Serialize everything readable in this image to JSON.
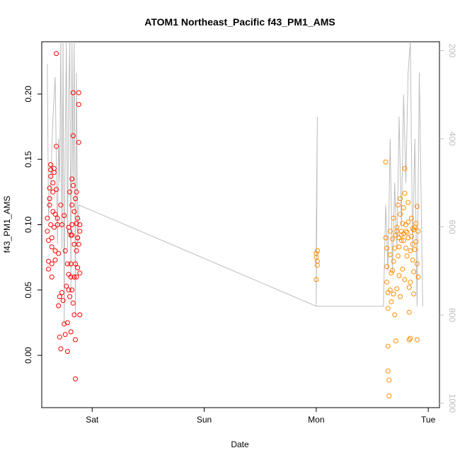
{
  "chart_data": {
    "type": "scatter",
    "title": "ATOM1 Northeast_Pacific f43_PM1_AMS",
    "xlabel": "Date",
    "ylabel": "f43_PM1_AMS",
    "x_ticks": [
      "Sat",
      "Sun",
      "Mon",
      "Tue"
    ],
    "x_range_days": [
      -0.45,
      3.1
    ],
    "ylim": [
      -0.04,
      0.24
    ],
    "y_ticks": [
      "0.00",
      "0.05",
      "0.10",
      "0.15",
      "0.20"
    ],
    "y2_ticks": [
      "200",
      "400",
      "600",
      "800",
      "1000"
    ],
    "y2_range": [
      1010,
      180
    ],
    "grid": false,
    "colors": {
      "series1": "#ff0000",
      "series2": "#ff8c00",
      "line": "#bdbdbd",
      "axis": "#000000",
      "axis_right": "#bdbdbd"
    },
    "series": [
      {
        "color": "#ff0000",
        "points": [
          [
            -0.4,
            0.105
          ],
          [
            -0.4,
            0.095
          ],
          [
            -0.39,
            0.088
          ],
          [
            -0.39,
            0.072
          ],
          [
            -0.39,
            0.066
          ],
          [
            -0.38,
            0.115
          ],
          [
            -0.38,
            0.12
          ],
          [
            -0.38,
            0.128
          ],
          [
            -0.37,
            0.137
          ],
          [
            -0.37,
            0.142
          ],
          [
            -0.37,
            0.146
          ],
          [
            -0.37,
            0.1
          ],
          [
            -0.36,
            0.09
          ],
          [
            -0.36,
            0.083
          ],
          [
            -0.36,
            0.07
          ],
          [
            -0.36,
            0.06
          ],
          [
            -0.35,
            0.11
          ],
          [
            -0.35,
            0.125
          ],
          [
            -0.35,
            0.132
          ],
          [
            -0.34,
            0.143
          ],
          [
            -0.34,
            0.14
          ],
          [
            -0.34,
            0.098
          ],
          [
            -0.33,
            0.108
          ],
          [
            -0.33,
            0.08
          ],
          [
            -0.33,
            0.073
          ],
          [
            -0.32,
            0.16
          ],
          [
            -0.32,
            0.127
          ],
          [
            -0.32,
            0.231
          ],
          [
            -0.31,
            0.105
          ],
          [
            -0.31,
            0.1
          ],
          [
            -0.3,
            0.078
          ],
          [
            -0.3,
            0.038
          ],
          [
            -0.29,
            0.045
          ],
          [
            -0.29,
            0.014
          ],
          [
            -0.28,
            0.005
          ],
          [
            -0.28,
            0.115
          ],
          [
            -0.27,
            0.1
          ],
          [
            -0.27,
            0.048
          ],
          [
            -0.26,
            0.042
          ],
          [
            -0.25,
            0.107
          ],
          [
            -0.25,
            0.024
          ],
          [
            -0.24,
            0.016
          ],
          [
            -0.24,
            0.08
          ],
          [
            -0.23,
            0.053
          ],
          [
            -0.22,
            0.003
          ],
          [
            -0.22,
            0.025
          ],
          [
            -0.21,
            0.062
          ],
          [
            -0.21,
            0.098
          ],
          [
            -0.2,
            0.125
          ],
          [
            -0.2,
            0.045
          ],
          [
            -0.19,
            0.06
          ],
          [
            -0.19,
            0.018
          ],
          [
            -0.18,
            0.092
          ],
          [
            -0.18,
            0.135
          ],
          [
            -0.17,
            0.168
          ],
          [
            -0.17,
            0.201
          ],
          [
            -0.16,
            0.085
          ],
          [
            -0.16,
            0.031
          ],
          [
            -0.15,
            0.012
          ],
          [
            -0.15,
            -0.018
          ],
          [
            -0.14,
            0.125
          ],
          [
            -0.14,
            0.101
          ],
          [
            -0.13,
            0.09
          ],
          [
            -0.13,
            0.067
          ],
          [
            -0.12,
            0.201
          ],
          [
            -0.12,
            0.192
          ],
          [
            -0.12,
            0.163
          ],
          [
            -0.11,
            0.095
          ],
          [
            -0.11,
            0.063
          ],
          [
            -0.11,
            0.031
          ],
          [
            -0.17,
            0.13
          ],
          [
            -0.18,
            0.115
          ],
          [
            -0.16,
            0.11
          ],
          [
            -0.15,
            0.12
          ],
          [
            -0.14,
            0.08
          ],
          [
            -0.13,
            0.105
          ],
          [
            -0.2,
            0.095
          ],
          [
            -0.21,
            0.05
          ],
          [
            -0.22,
            0.07
          ],
          [
            -0.19,
            0.07
          ],
          [
            -0.18,
            0.05
          ],
          [
            -0.17,
            0.04
          ],
          [
            -0.16,
            0.06
          ],
          [
            -0.15,
            0.07
          ],
          [
            -0.14,
            0.06
          ],
          [
            -0.13,
            0.09
          ],
          [
            -0.12,
            0.085
          ],
          [
            -0.11,
            0.1
          ],
          [
            -0.18,
            0.1
          ],
          [
            -0.19,
            0.092
          ]
        ]
      },
      {
        "color": "#ff8c00",
        "points": [
          [
            2.0,
            0.078
          ],
          [
            2.0,
            0.075
          ],
          [
            2.01,
            0.072
          ],
          [
            2.01,
            0.069
          ],
          [
            2.0,
            0.058
          ],
          [
            2.01,
            0.08
          ],
          [
            2.62,
            0.148
          ],
          [
            2.62,
            0.09
          ],
          [
            2.63,
            0.082
          ],
          [
            2.63,
            0.068
          ],
          [
            2.63,
            0.056
          ],
          [
            2.64,
            0.048
          ],
          [
            2.64,
            0.036
          ],
          [
            2.64,
            0.007
          ],
          [
            2.64,
            -0.012
          ],
          [
            2.65,
            -0.019
          ],
          [
            2.65,
            -0.031
          ],
          [
            2.66,
            0.095
          ],
          [
            2.66,
            0.077
          ],
          [
            2.67,
            0.063
          ],
          [
            2.67,
            0.041
          ],
          [
            2.68,
            0.089
          ],
          [
            2.69,
            0.105
          ],
          [
            2.69,
            0.072
          ],
          [
            2.7,
            0.031
          ],
          [
            2.71,
            0.011
          ],
          [
            2.71,
            0.092
          ],
          [
            2.72,
            0.098
          ],
          [
            2.73,
            0.115
          ],
          [
            2.73,
            0.076
          ],
          [
            2.74,
            0.083
          ],
          [
            2.74,
            0.061
          ],
          [
            2.75,
            0.12
          ],
          [
            2.75,
            0.108
          ],
          [
            2.76,
            0.095
          ],
          [
            2.76,
            0.088
          ],
          [
            2.77,
            0.101
          ],
          [
            2.77,
            0.066
          ],
          [
            2.78,
            0.113
          ],
          [
            2.78,
            0.093
          ],
          [
            2.79,
            0.124
          ],
          [
            2.79,
            0.143
          ],
          [
            2.8,
            0.095
          ],
          [
            2.8,
            0.082
          ],
          [
            2.81,
            0.094
          ],
          [
            2.81,
            0.076
          ],
          [
            2.82,
            0.117
          ],
          [
            2.82,
            0.102
          ],
          [
            2.83,
            0.033
          ],
          [
            2.83,
            0.012
          ],
          [
            2.84,
            0.013
          ],
          [
            2.84,
            0.056
          ],
          [
            2.85,
            0.105
          ],
          [
            2.85,
            0.091
          ],
          [
            2.86,
            0.085
          ],
          [
            2.86,
            0.073
          ],
          [
            2.87,
            0.096
          ],
          [
            2.87,
            0.064
          ],
          [
            2.88,
            0.098
          ],
          [
            2.88,
            0.081
          ],
          [
            2.89,
            0.101
          ],
          [
            2.89,
            0.087
          ],
          [
            2.9,
            0.114
          ],
          [
            2.9,
            0.012
          ],
          [
            2.91,
            0.06
          ],
          [
            2.91,
            0.095
          ],
          [
            2.68,
            0.065
          ],
          [
            2.7,
            0.082
          ],
          [
            2.72,
            0.095
          ],
          [
            2.74,
            0.09
          ],
          [
            2.76,
            0.092
          ],
          [
            2.78,
            0.088
          ],
          [
            2.8,
            0.1
          ],
          [
            2.82,
            0.09
          ],
          [
            2.84,
            0.08
          ],
          [
            2.86,
            0.097
          ],
          [
            2.66,
            0.05
          ],
          [
            2.69,
            0.047
          ],
          [
            2.72,
            0.051
          ],
          [
            2.75,
            0.045
          ],
          [
            2.79,
            0.058
          ],
          [
            2.83,
            0.052
          ],
          [
            2.87,
            0.047
          ],
          [
            2.9,
            0.07
          ]
        ]
      }
    ],
    "line_series": {
      "color": "#bdbdbd",
      "points": [
        [
          -0.4,
          230
        ],
        [
          -0.39,
          580
        ],
        [
          -0.37,
          500
        ],
        [
          -0.35,
          350
        ],
        [
          -0.33,
          260
        ],
        [
          -0.31,
          640
        ],
        [
          -0.3,
          400
        ],
        [
          -0.29,
          500
        ],
        [
          -0.28,
          180
        ],
        [
          -0.27,
          650
        ],
        [
          -0.26,
          180
        ],
        [
          -0.25,
          820
        ],
        [
          -0.24,
          400
        ],
        [
          -0.23,
          180
        ],
        [
          -0.22,
          650
        ],
        [
          -0.21,
          300
        ],
        [
          -0.2,
          180
        ],
        [
          -0.19,
          750
        ],
        [
          -0.18,
          180
        ],
        [
          -0.17,
          500
        ],
        [
          -0.16,
          180
        ],
        [
          -0.15,
          800
        ],
        [
          -0.14,
          250
        ],
        [
          -0.13,
          650
        ],
        [
          -0.12,
          550
        ],
        [
          2.0,
          780
        ],
        [
          2.0,
          600
        ],
        [
          2.01,
          350
        ],
        [
          2.0,
          780
        ],
        [
          2.6,
          780
        ],
        [
          2.62,
          550
        ],
        [
          2.64,
          700
        ],
        [
          2.66,
          400
        ],
        [
          2.68,
          700
        ],
        [
          2.7,
          500
        ],
        [
          2.72,
          650
        ],
        [
          2.74,
          350
        ],
        [
          2.76,
          600
        ],
        [
          2.78,
          300
        ],
        [
          2.8,
          500
        ],
        [
          2.82,
          250
        ],
        [
          2.84,
          180
        ],
        [
          2.86,
          650
        ],
        [
          2.88,
          400
        ],
        [
          2.9,
          780
        ],
        [
          2.92,
          250
        ],
        [
          2.95,
          780
        ]
      ]
    }
  }
}
